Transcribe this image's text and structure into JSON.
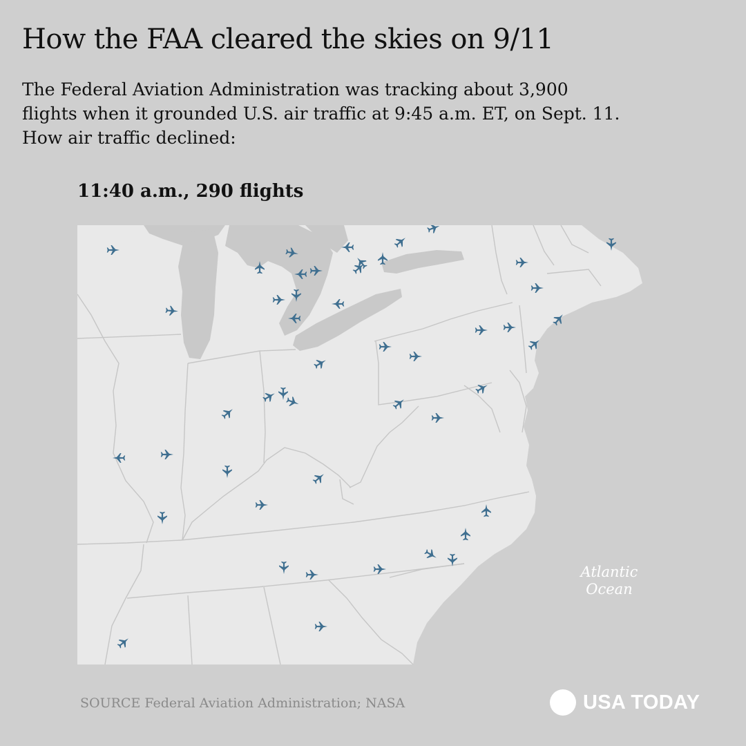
{
  "header": {
    "title": "How the FAA cleared the skies on 9/11",
    "subtitle_lines": [
      "The Federal Aviation Administration was tracking about 3,900",
      "flights when it grounded U.S. air traffic at 9:45 a.m. ET, on Sept. 11.",
      "How air traffic declined:"
    ]
  },
  "map": {
    "time_label": "11:40 a.m., 290 flights",
    "ocean_label": [
      "Atlantic",
      "Ocean"
    ],
    "plane_icon": "airplane-icon",
    "colors": {
      "background": "#cfcfcf",
      "land": "#e9e9e9",
      "lakes": "#c9c9c9",
      "borders": "#c4c4c4",
      "plane": "#3f6f90"
    }
  },
  "footer": {
    "source": "SOURCE Federal Aviation Administration; NASA",
    "brand": "USA TODAY"
  }
}
